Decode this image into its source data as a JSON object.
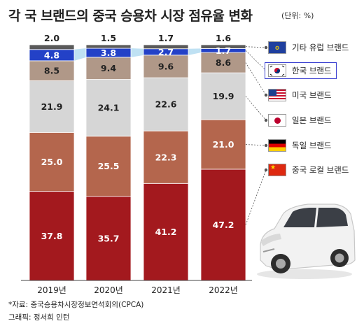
{
  "title": "각 국 브랜드의 중국 승용차 시장 점유율 변화",
  "unit_note": "(단위: %)",
  "source": "*자료: 중국승용차시장정보연석회의(CPCA)",
  "credit": "그래픽: 정서희 인턴",
  "colors": {
    "china_local": "#a3191e",
    "germany": "#b4664d",
    "japan": "#d6d6d6",
    "usa": "#b09888",
    "korea": "#2341c7",
    "other_europe": "#5a5a5a",
    "korea_band": "#bfe1f3"
  },
  "legend": [
    {
      "name": "기타 유럽 브랜드",
      "flag": "eu-flag-icon",
      "highlight": false
    },
    {
      "name": "한국 브랜드",
      "flag": "korea-flag-icon",
      "highlight": true
    },
    {
      "name": "미국 브랜드",
      "flag": "usa-flag-icon",
      "highlight": false
    },
    {
      "name": "일본 브랜드",
      "flag": "japan-flag-icon",
      "highlight": false
    },
    {
      "name": "독일 브랜드",
      "flag": "germany-flag-icon",
      "highlight": false
    },
    {
      "name": "중국 로컬 브랜드",
      "flag": "china-flag-icon",
      "highlight": false
    }
  ],
  "chart_data": {
    "type": "bar",
    "stacked": true,
    "categories": [
      "2019년",
      "2020년",
      "2021년",
      "2022년"
    ],
    "series": [
      {
        "name": "중국 로컬 브랜드",
        "values": [
          37.8,
          35.7,
          41.2,
          47.2
        ]
      },
      {
        "name": "독일 브랜드",
        "values": [
          25.0,
          25.5,
          22.3,
          21.0
        ]
      },
      {
        "name": "일본 브랜드",
        "values": [
          21.9,
          24.1,
          22.6,
          19.9
        ]
      },
      {
        "name": "미국 브랜드",
        "values": [
          8.5,
          9.4,
          9.6,
          8.6
        ]
      },
      {
        "name": "한국 브랜드",
        "values": [
          4.8,
          3.8,
          2.7,
          1.7
        ]
      },
      {
        "name": "기타 유럽 브랜드",
        "values": [
          2.0,
          1.5,
          1.7,
          1.6
        ]
      }
    ],
    "value_labels": [
      [
        "37.8",
        "35.7",
        "41.2",
        "47.2"
      ],
      [
        "25.0",
        "25.5",
        "22.3",
        "21.0"
      ],
      [
        "21.9",
        "24.1",
        "22.6",
        "19.9"
      ],
      [
        "8.5",
        "9.4",
        "9.6",
        "8.6"
      ],
      [
        "4.8",
        "3.8",
        "2.7",
        "1.7"
      ],
      [
        "2.0",
        "1.5",
        "1.7",
        "1.6"
      ]
    ],
    "ylim": [
      0,
      100
    ],
    "grid": false,
    "legend_position": "right"
  }
}
